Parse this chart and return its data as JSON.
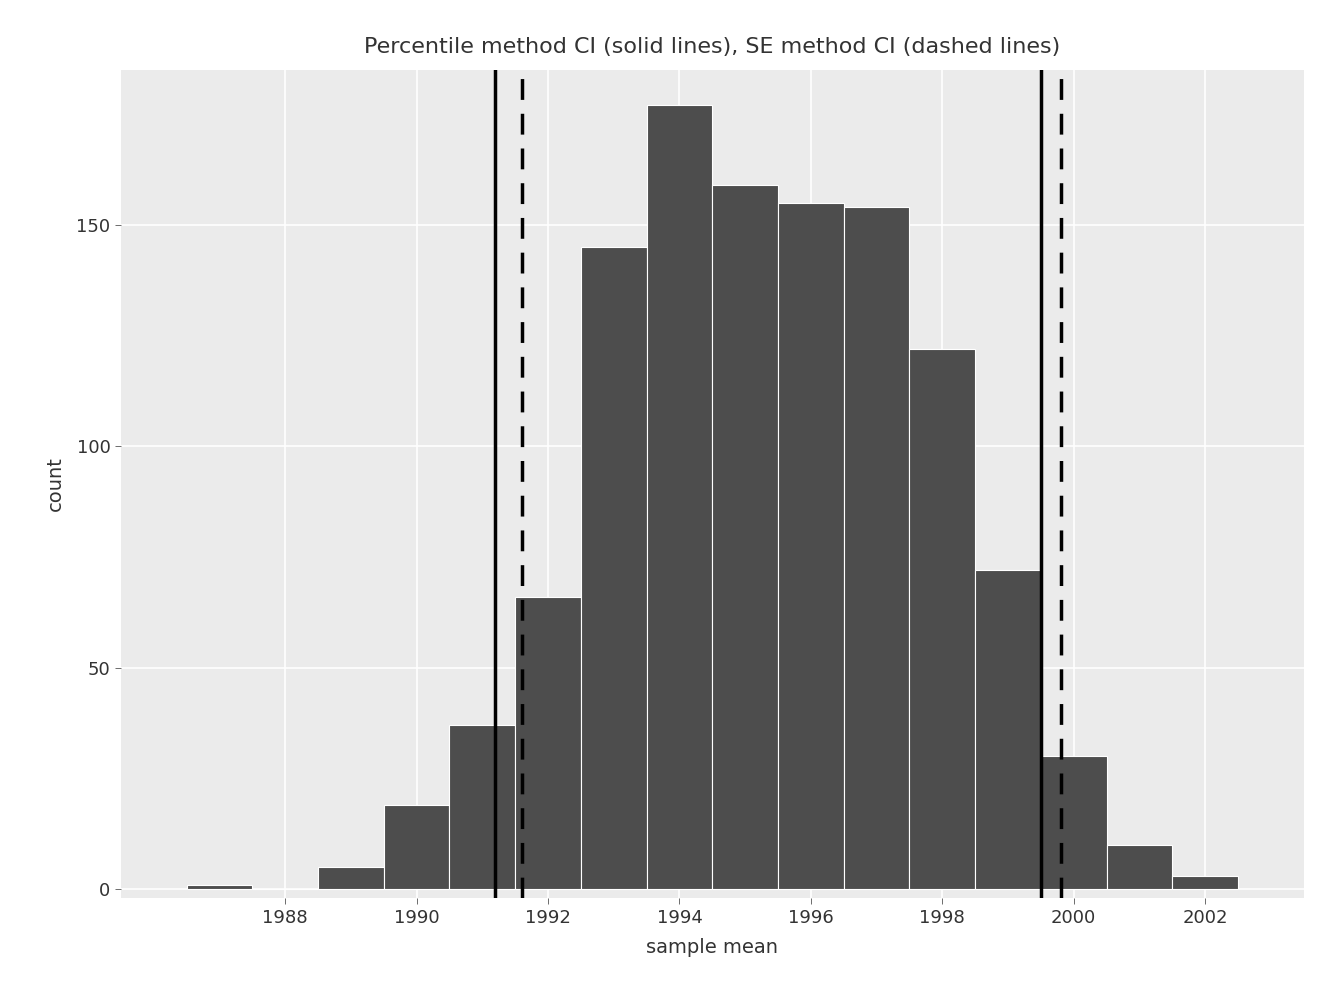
{
  "title": "Percentile method CI (solid lines), SE method CI (dashed lines)",
  "xlabel": "sample mean",
  "ylabel": "count",
  "figure_background_color": "#FFFFFF",
  "plot_background_color": "#EBEBEB",
  "bar_color": "#4D4D4D",
  "bar_edge_color": "white",
  "bar_centers": [
    1987,
    1988,
    1989,
    1990,
    1991,
    1992,
    1993,
    1994,
    1995,
    1996,
    1997,
    1998,
    1999,
    2000,
    2001,
    2002
  ],
  "bar_heights": [
    1,
    0,
    5,
    19,
    37,
    66,
    145,
    177,
    159,
    155,
    154,
    122,
    72,
    30,
    10,
    3
  ],
  "bar_width": 1.0,
  "vline_solid_1": 1991.2,
  "vline_solid_2": 1999.5,
  "vline_dashed_1": 1991.6,
  "vline_dashed_2": 1999.8,
  "vline_color": "black",
  "vline_solid_linewidth": 2.5,
  "vline_dashed_linewidth": 2.5,
  "xlim": [
    1985.5,
    2003.5
  ],
  "ylim": [
    -2,
    185
  ],
  "xticks": [
    1988,
    1990,
    1992,
    1994,
    1996,
    1998,
    2000,
    2002
  ],
  "yticks": [
    0,
    50,
    100,
    150
  ],
  "grid_color": "white",
  "grid_linewidth": 1.2,
  "title_fontsize": 16,
  "axis_label_fontsize": 14,
  "tick_fontsize": 13
}
